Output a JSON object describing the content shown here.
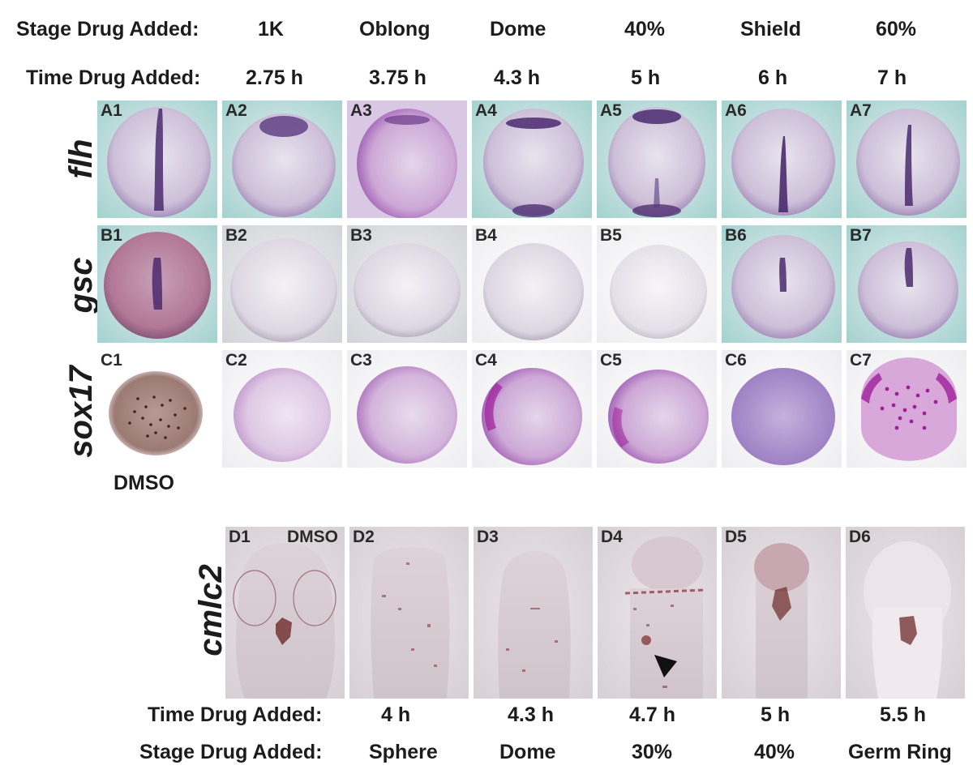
{
  "top": {
    "stage_label": "Stage Drug Added:",
    "time_label": "Time Drug Added:",
    "stages": [
      "1K",
      "Oblong",
      "Dome",
      "40%",
      "Shield",
      "60%"
    ],
    "times": [
      "2.75 h",
      "3.75 h",
      "4.3 h",
      "5 h",
      "6 h",
      "7 h"
    ]
  },
  "rows": {
    "a": {
      "gene": "flh",
      "panels": [
        "A1",
        "A2",
        "A3",
        "A4",
        "A5",
        "A6",
        "A7"
      ]
    },
    "b": {
      "gene": "gsc",
      "panels": [
        "B1",
        "B2",
        "B3",
        "B4",
        "B5",
        "B6",
        "B7"
      ]
    },
    "c": {
      "gene": "sox17",
      "panels": [
        "C1",
        "C2",
        "C3",
        "C4",
        "C5",
        "C6",
        "C7"
      ],
      "control_label": "DMSO"
    },
    "d": {
      "gene": "cmlc2",
      "panels": [
        "D1",
        "D2",
        "D3",
        "D4",
        "D5",
        "D6"
      ],
      "control_label": "DMSO"
    }
  },
  "bottom": {
    "time_label": "Time Drug Added:",
    "stage_label": "Stage Drug Added:",
    "times": [
      "4 h",
      "4.3 h",
      "4.7 h",
      "5 h",
      "5.5 h"
    ],
    "stages": [
      "Sphere",
      "Dome",
      "30%",
      "40%",
      "Germ Ring"
    ]
  },
  "colors": {
    "stain_purple": "#4a2a6e",
    "stain_magenta": "#a0209a",
    "stain_brown": "#6e2a2a",
    "bg_teal": "#c8e0dc"
  }
}
